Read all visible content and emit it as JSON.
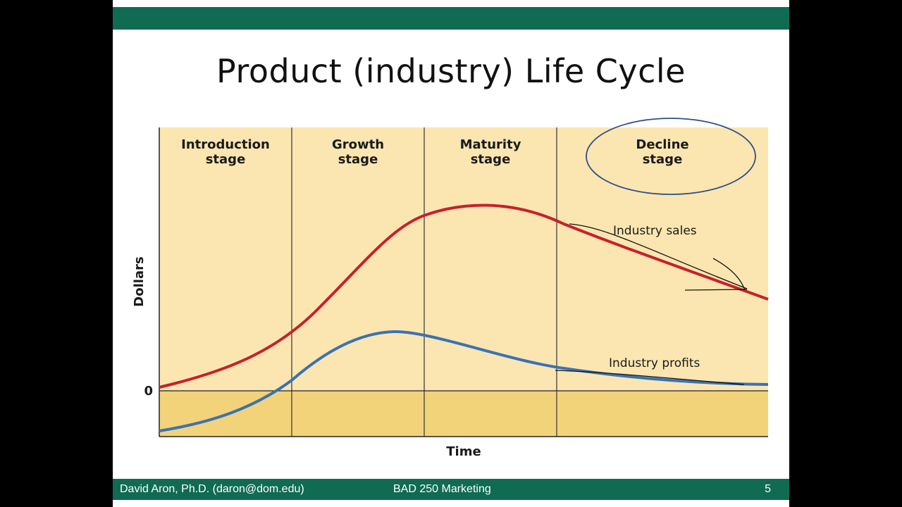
{
  "slide": {
    "title": "Product (industry) Life Cycle"
  },
  "diagram": {
    "stages": [
      {
        "line1": "Introduction",
        "line2": "stage"
      },
      {
        "line1": "Growth",
        "line2": "stage"
      },
      {
        "line1": "Maturity",
        "line2": "stage"
      },
      {
        "line1": "Decline",
        "line2": "stage"
      }
    ],
    "y_axis_label": "Dollars",
    "x_axis_label": "Time",
    "zero_label": "0",
    "curves": {
      "sales_label": "Industry sales",
      "profits_label": "Industry profits",
      "sales_color": "#c8202a",
      "profits_color": "#3a72b4"
    },
    "highlight": "Decline stage circled"
  },
  "footer": {
    "author": "David Aron,  Ph.D.  (daron@dom.edu)",
    "course": "BAD 250 Marketing",
    "page": "5"
  }
}
